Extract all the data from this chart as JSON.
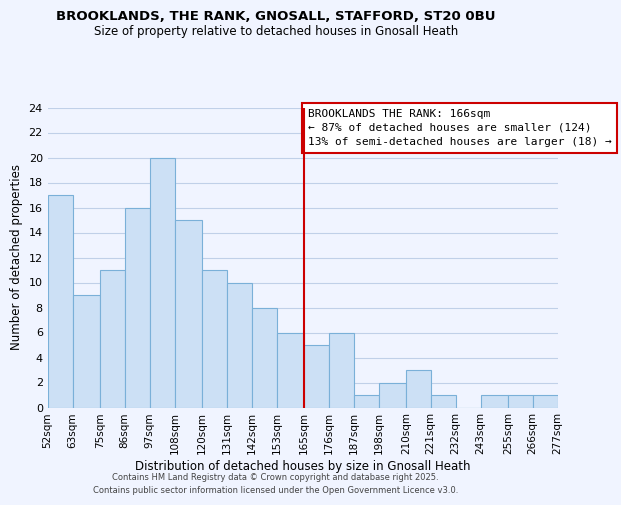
{
  "title": "BROOKLANDS, THE RANK, GNOSALL, STAFFORD, ST20 0BU",
  "subtitle": "Size of property relative to detached houses in Gnosall Heath",
  "xlabel": "Distribution of detached houses by size in Gnosall Heath",
  "ylabel": "Number of detached properties",
  "bin_edges": [
    52,
    63,
    75,
    86,
    97,
    108,
    120,
    131,
    142,
    153,
    165,
    176,
    187,
    198,
    210,
    221,
    232,
    243,
    255,
    266,
    277
  ],
  "bar_heights": [
    17,
    9,
    11,
    16,
    20,
    15,
    11,
    10,
    8,
    6,
    5,
    6,
    1,
    2,
    3,
    1,
    0,
    1,
    1,
    1
  ],
  "bar_color": "#cce0f5",
  "bar_edgecolor": "#7ab0d8",
  "reference_line_x": 165,
  "reference_line_color": "#cc0000",
  "annotation_title": "BROOKLANDS THE RANK: 166sqm",
  "annotation_line2": "← 87% of detached houses are smaller (124)",
  "annotation_line3": "13% of semi-detached houses are larger (18) →",
  "annotation_box_edgecolor": "#cc0000",
  "annotation_box_facecolor": "#ffffff",
  "ylim": [
    0,
    24
  ],
  "yticks": [
    0,
    2,
    4,
    6,
    8,
    10,
    12,
    14,
    16,
    18,
    20,
    22,
    24
  ],
  "tick_labels": [
    "52sqm",
    "63sqm",
    "75sqm",
    "86sqm",
    "97sqm",
    "108sqm",
    "120sqm",
    "131sqm",
    "142sqm",
    "153sqm",
    "165sqm",
    "176sqm",
    "187sqm",
    "198sqm",
    "210sqm",
    "221sqm",
    "232sqm",
    "243sqm",
    "255sqm",
    "266sqm",
    "277sqm"
  ],
  "footer_line1": "Contains HM Land Registry data © Crown copyright and database right 2025.",
  "footer_line2": "Contains public sector information licensed under the Open Government Licence v3.0.",
  "background_color": "#f0f4ff",
  "grid_color": "#c0d0e8"
}
